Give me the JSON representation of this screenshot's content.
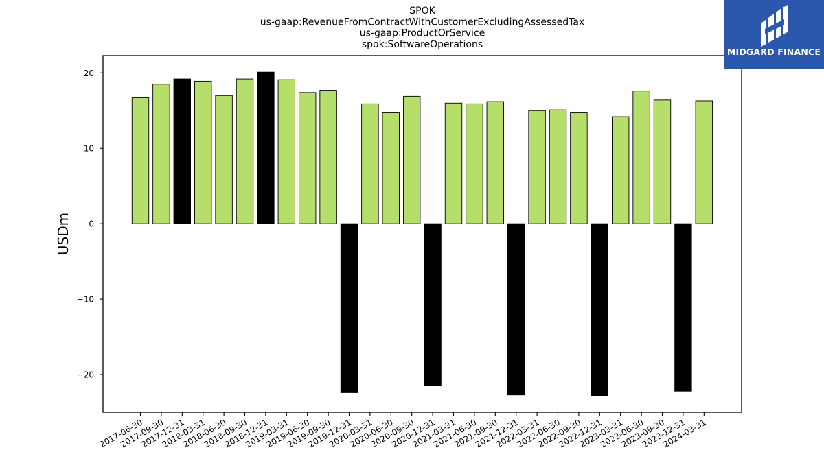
{
  "chart_data": {
    "type": "bar",
    "title_lines": [
      "SPOK",
      "us-gaap:RevenueFromContractWithCustomerExcludingAssessedTax",
      "us-gaap:ProductOrService",
      "spok:SoftwareOperations"
    ],
    "xlabel": "",
    "ylabel": "USDm",
    "ylim": [
      -25,
      22.3
    ],
    "yticks": [
      -20,
      -10,
      0,
      10,
      20
    ],
    "ytick_labels": [
      "−20",
      "−10",
      "0",
      "10",
      "20"
    ],
    "grid": false,
    "categories": [
      "2017-06-30",
      "2017-09-30",
      "2017-12-31",
      "2018-03-31",
      "2018-06-30",
      "2018-09-30",
      "2018-12-31",
      "2019-03-31",
      "2019-06-30",
      "2019-09-30",
      "2019-12-31",
      "2020-03-31",
      "2020-06-30",
      "2020-09-30",
      "2020-12-31",
      "2021-03-31",
      "2021-06-30",
      "2021-09-30",
      "2021-12-31",
      "2022-03-31",
      "2022-06-30",
      "2022-09-30",
      "2022-12-31",
      "2023-03-31",
      "2023-06-30",
      "2023-09-30",
      "2023-12-31",
      "2024-03-31"
    ],
    "values": [
      16.7,
      18.5,
      19.2,
      18.9,
      17.0,
      19.2,
      20.1,
      19.1,
      17.4,
      17.7,
      -22.4,
      15.9,
      14.7,
      16.9,
      -21.5,
      16.0,
      15.9,
      16.2,
      -22.7,
      15.0,
      15.1,
      14.7,
      -22.8,
      14.2,
      17.6,
      16.4,
      -22.2,
      16.3
    ],
    "bar_colors": [
      "#b5de6b",
      "#b5de6b",
      "#000000",
      "#b5de6b",
      "#b5de6b",
      "#b5de6b",
      "#000000",
      "#b5de6b",
      "#b5de6b",
      "#b5de6b",
      "#000000",
      "#b5de6b",
      "#b5de6b",
      "#b5de6b",
      "#000000",
      "#b5de6b",
      "#b5de6b",
      "#b5de6b",
      "#000000",
      "#b5de6b",
      "#b5de6b",
      "#b5de6b",
      "#000000",
      "#b5de6b",
      "#b5de6b",
      "#b5de6b",
      "#000000",
      "#b5de6b"
    ]
  },
  "logo": {
    "text": "MIDGARD FINANCE",
    "background": "#2b58ad"
  }
}
